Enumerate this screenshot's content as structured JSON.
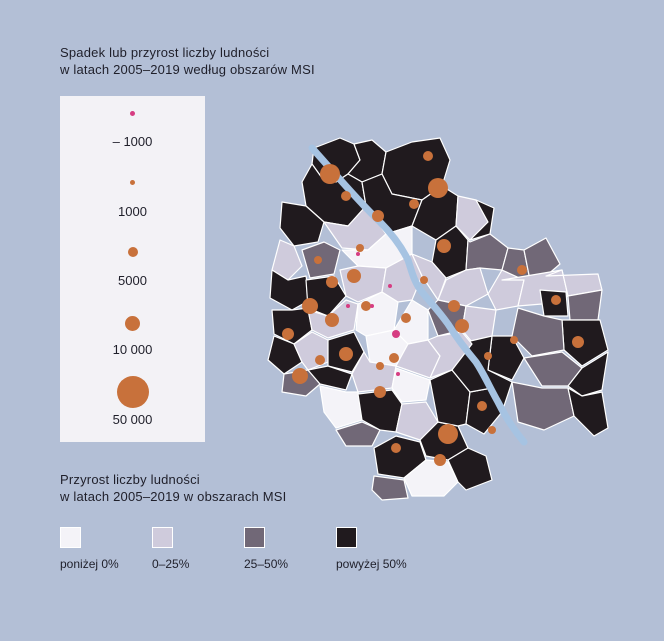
{
  "size_legend": {
    "title_line1": "Spadek lub przyrost liczby ludności",
    "title_line2": "w latach 2005–2019 według obszarów MSI",
    "items": [
      {
        "label": "– 1000",
        "color": "#d63d82",
        "value": -1000
      },
      {
        "label": "1000",
        "color": "#c8713b",
        "value": 1000
      },
      {
        "label": "5000",
        "color": "#c8713b",
        "value": 5000
      },
      {
        "label": "10 000",
        "color": "#c8713b",
        "value": 10000
      },
      {
        "label": "50 000",
        "color": "#c8713b",
        "value": 50000
      }
    ]
  },
  "class_legend": {
    "title_line1": "Przyrost liczby ludności",
    "title_line2": "w latach 2005–2019 w obszarach MSI",
    "items": [
      {
        "label": "poniżej 0%",
        "color": "#f4f3f8"
      },
      {
        "label": "0–25%",
        "color": "#cfcbdc"
      },
      {
        "label": "25–50%",
        "color": "#716877"
      },
      {
        "label": "powyżej 50%",
        "color": "#201a1e"
      }
    ]
  },
  "colors": {
    "background": "#b3bfd6",
    "river": "#a6c3e2",
    "area_outline": "#ffffff",
    "decline_dot": "#d63d82",
    "growth_dot": "#c8713b"
  }
}
